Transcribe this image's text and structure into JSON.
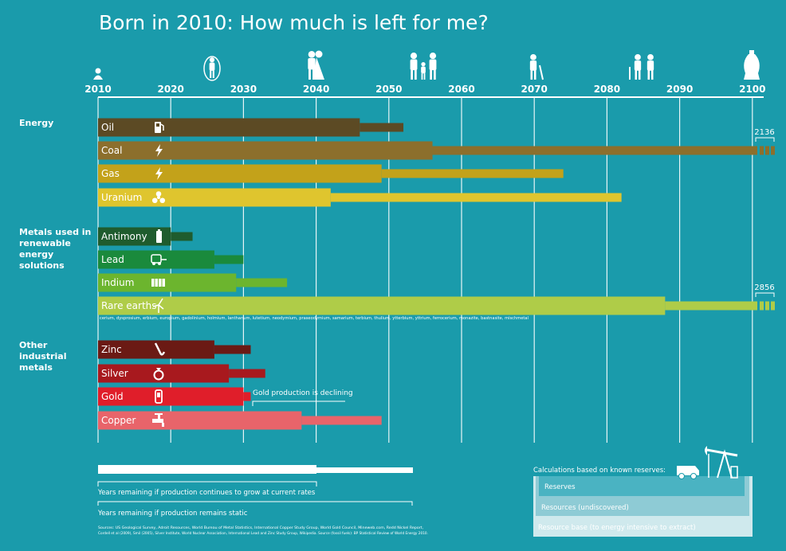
{
  "title": "Born in 2010: How much is left for me?",
  "colors": {
    "background": "#1a9bab",
    "oil": "#5c4a24",
    "coal": "#8c6f2c",
    "gas": "#c3a21a",
    "uranium": "#dfc52e",
    "antimony": "#1f5c2e",
    "lead": "#1a8a3c",
    "indium": "#6cb52e",
    "rare_earths": "#afcc48",
    "zinc": "#6b1a14",
    "silver": "#a8191e",
    "gold": "#e01e2a",
    "copper": "#e8646a"
  },
  "chart_data": {
    "type": "bar",
    "subtype": "horizontal range bars from 2010",
    "title": "Born in 2010: How much is left for me?",
    "x_axis": {
      "ticks": [
        "2010",
        "2020",
        "2030",
        "2040",
        "2050",
        "2060",
        "2070",
        "2080",
        "2090",
        "2100"
      ],
      "xlim": [
        2010,
        2100
      ]
    },
    "life_stage_icons": [
      "baby-icon",
      "child-skipping-icon",
      "bride-groom-icon",
      "family-icon",
      "elderly-man-icon",
      "elderly-couple-icon",
      "urn-icon"
    ],
    "groups": [
      {
        "label": "Energy",
        "items": [
          {
            "name": "Oil",
            "icon": "fuel-pump-icon",
            "growth_year": 2046,
            "static_year": 2052,
            "color": "oil"
          },
          {
            "name": "Coal",
            "icon": "lightning-icon",
            "growth_year": 2056,
            "static_year": 2136,
            "overflow_label": "2136",
            "color": "coal"
          },
          {
            "name": "Gas",
            "icon": "lightning-icon",
            "growth_year": 2049,
            "static_year": 2074,
            "color": "gas"
          },
          {
            "name": "Uranium",
            "icon": "radiation-icon",
            "growth_year": 2042,
            "static_year": 2082,
            "color": "uranium"
          }
        ]
      },
      {
        "label": "Metals used in renewable energy solutions",
        "items": [
          {
            "name": "Antimony",
            "icon": "battery-icon",
            "growth_year": 2020,
            "static_year": 2023,
            "color": "antimony"
          },
          {
            "name": "Lead",
            "icon": "electric-car-icon",
            "growth_year": 2026,
            "static_year": 2030,
            "color": "lead"
          },
          {
            "name": "Indium",
            "icon": "solar-panel-icon",
            "growth_year": 2029,
            "static_year": 2036,
            "color": "indium"
          },
          {
            "name": "Rare earths",
            "icon": "wind-turbine-icon",
            "growth_year": 2088,
            "static_year": 2856,
            "overflow_label": "2856",
            "color": "rare_earths",
            "subnote": "cerium, dysprosium, erbium, europium, gadolinium, holmium, lanthanum, lutetium, neodymium, praseodymium, samarium, terbium, thulium, ytterbium, yttrium, ferrocerium, monazite, bastnasite, mischmetal"
          }
        ]
      },
      {
        "label": "Other industrial metals",
        "items": [
          {
            "name": "Zinc",
            "icon": "saxophone-icon",
            "growth_year": 2026,
            "static_year": 2031,
            "color": "zinc"
          },
          {
            "name": "Silver",
            "icon": "ring-icon",
            "growth_year": 2028,
            "static_year": 2033,
            "color": "silver"
          },
          {
            "name": "Gold",
            "icon": "mobile-phone-icon",
            "growth_year": 2030,
            "static_year": 2031,
            "color": "gold",
            "annotation": "Gold production is declining"
          },
          {
            "name": "Copper",
            "icon": "faucet-icon",
            "growth_year": 2038,
            "static_year": 2049,
            "color": "copper"
          }
        ]
      }
    ]
  },
  "legend": {
    "growth_label": "Years remaining if production continues to grow at current rates",
    "static_label": "Years remaining if production remains static"
  },
  "reserves_box": {
    "heading": "Calculations based on known reserves:",
    "levels": [
      "Reserves",
      "Resources (undiscovered)",
      "Resource base (to energy intensive to extract)"
    ]
  },
  "sources": {
    "line1": "Sources: US Geological Survey, Adroit Resources, World Bureau of Metal Statistics, International Copper Study Group, World Gold Council, Mineweb.com, Redd Nickel Report,",
    "line2": "Cordell et al (2009), Smil (2005), Silver Institute, World Nuclear Association, International Lead and Zinc Study Group, Wikipedia. Source (fossil fuels): BP Statistical Review of World Energy 2010."
  }
}
